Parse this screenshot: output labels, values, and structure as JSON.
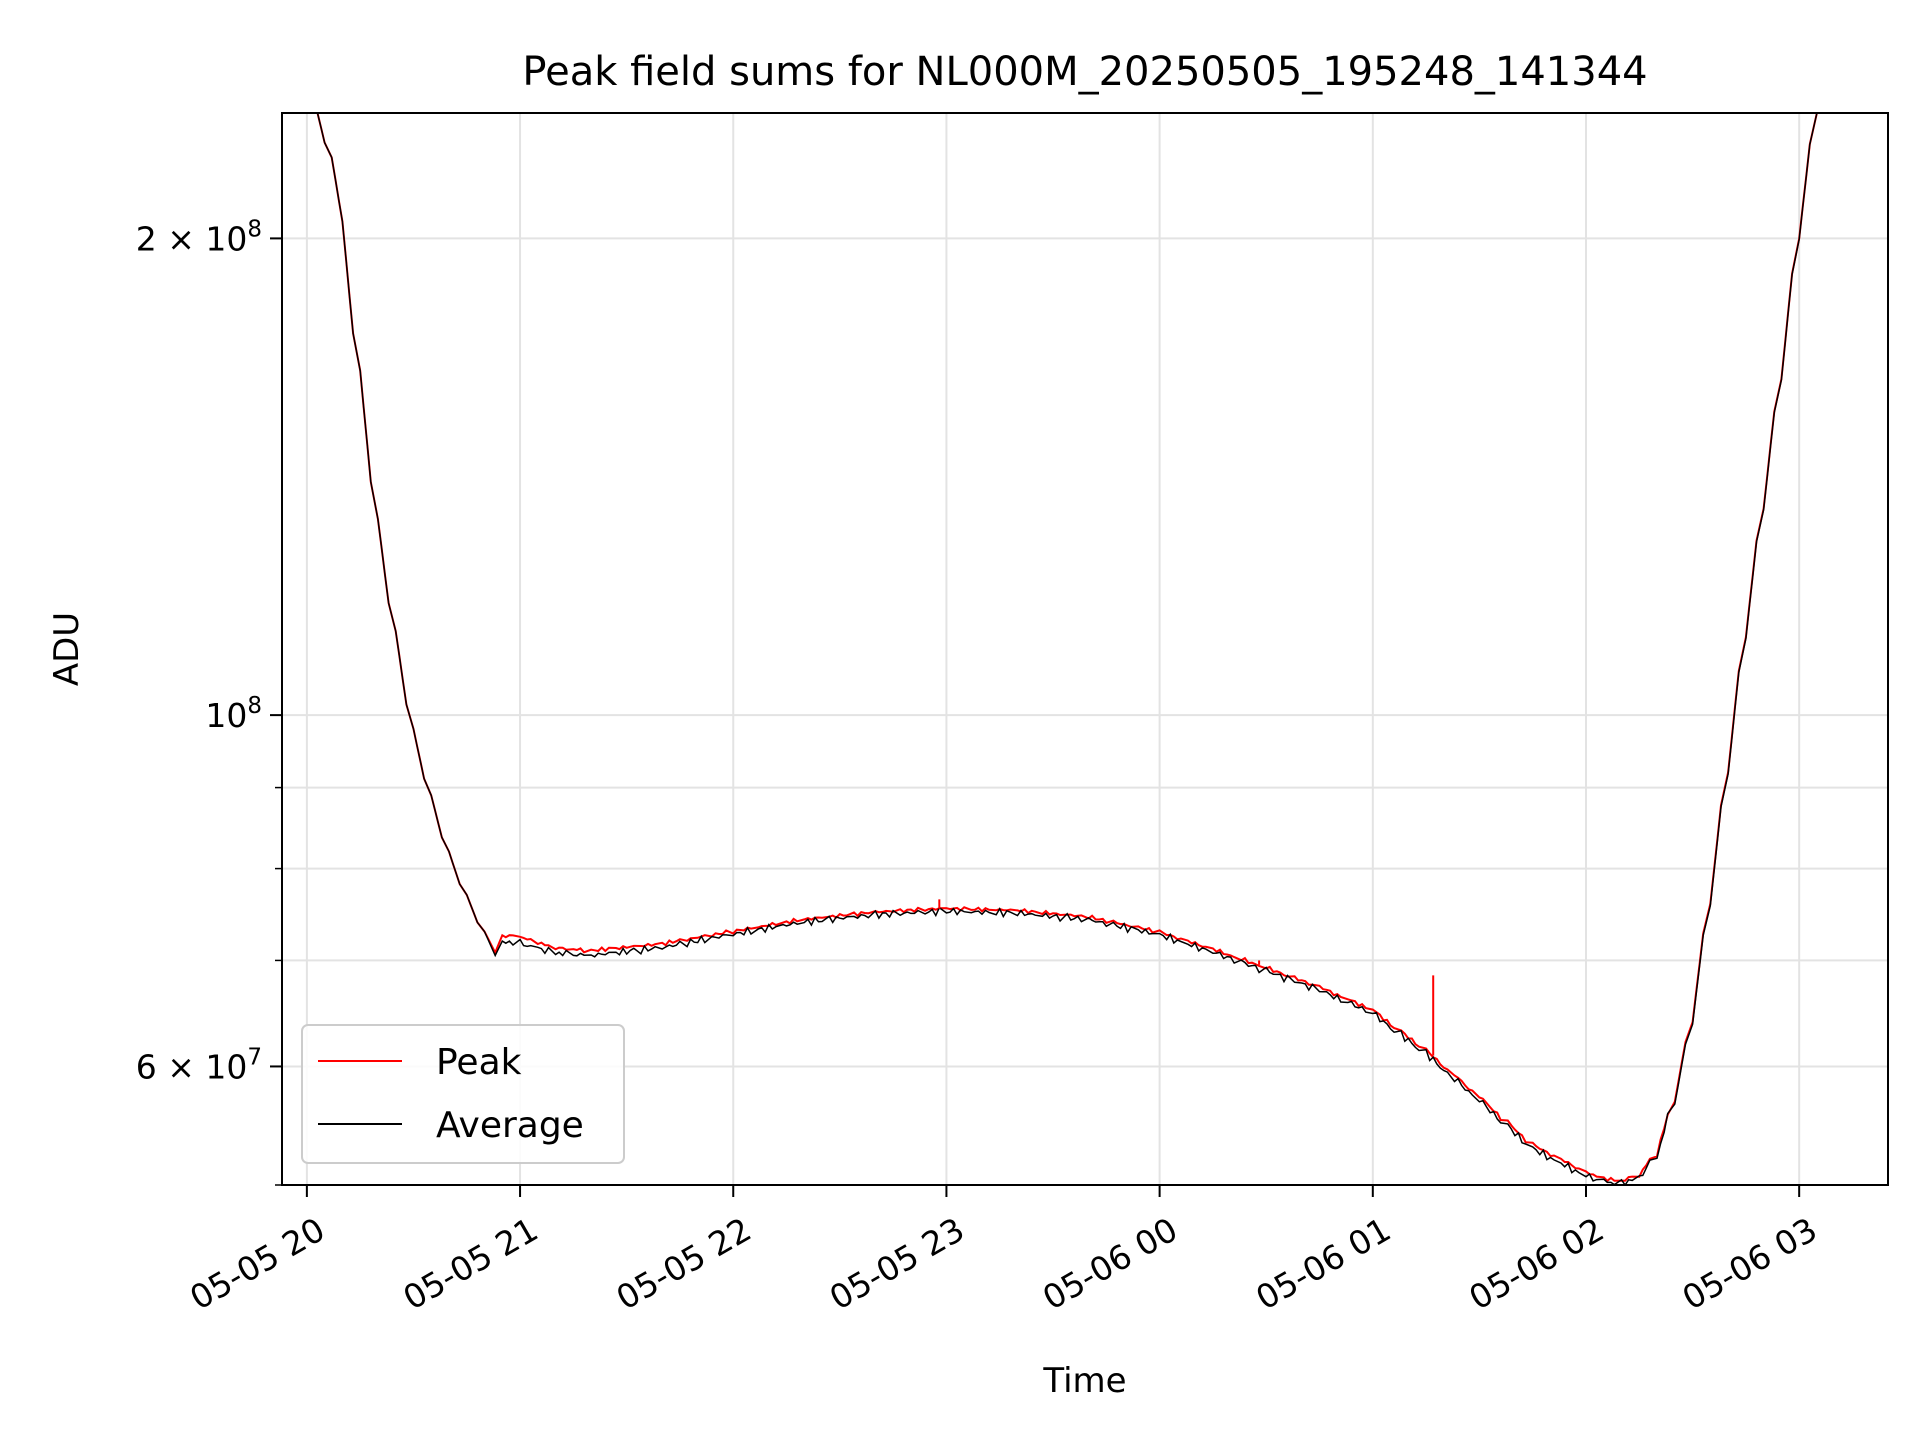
{
  "chart_data": {
    "type": "line",
    "title": "Peak field sums for NL000M_20250505_195248_141344",
    "xlabel": "Time",
    "ylabel": "ADU",
    "yscale": "log",
    "grid": true,
    "legend_position": "lower-left",
    "xlim": [
      "2025-05-05 19:53",
      "2025-05-06 03:25"
    ],
    "ylim": [
      50500000,
      240000000
    ],
    "x_ticks": [
      {
        "value": "2025-05-05 20:00",
        "label": "05-05 20"
      },
      {
        "value": "2025-05-05 21:00",
        "label": "05-05 21"
      },
      {
        "value": "2025-05-05 22:00",
        "label": "05-05 22"
      },
      {
        "value": "2025-05-05 23:00",
        "label": "05-05 23"
      },
      {
        "value": "2025-05-06 00:00",
        "label": "05-06 00"
      },
      {
        "value": "2025-05-06 01:00",
        "label": "05-06 01"
      },
      {
        "value": "2025-05-06 02:00",
        "label": "05-06 02"
      },
      {
        "value": "2025-05-06 03:00",
        "label": "05-06 03"
      }
    ],
    "y_major_ticks": [
      {
        "value": 200000000,
        "base": "2 × 10",
        "exp": "8"
      },
      {
        "value": 100000000,
        "base": "10",
        "exp": "8"
      },
      {
        "value": 60000000,
        "base": "6 × 10",
        "exp": "7"
      }
    ],
    "y_minor_ticks": [
      90000000,
      80000000,
      70000000,
      50000000
    ],
    "x": [
      "2025-05-05 19:53",
      "2025-05-05 20:00",
      "2025-05-05 20:03",
      "2025-05-05 20:07",
      "2025-05-05 20:10",
      "2025-05-05 20:15",
      "2025-05-05 20:20",
      "2025-05-05 20:25",
      "2025-05-05 20:30",
      "2025-05-05 20:35",
      "2025-05-05 20:40",
      "2025-05-05 20:45",
      "2025-05-05 20:50",
      "2025-05-05 20:53",
      "2025-05-05 20:55",
      "2025-05-05 21:00",
      "2025-05-05 21:10",
      "2025-05-05 21:20",
      "2025-05-05 21:40",
      "2025-05-05 22:00",
      "2025-05-05 22:20",
      "2025-05-05 22:40",
      "2025-05-05 23:00",
      "2025-05-05 23:20",
      "2025-05-05 23:40",
      "2025-05-06 00:00",
      "2025-05-06 00:15",
      "2025-05-06 00:30",
      "2025-05-06 00:45",
      "2025-05-06 01:00",
      "2025-05-06 01:15",
      "2025-05-06 01:30",
      "2025-05-06 01:45",
      "2025-05-06 02:00",
      "2025-05-06 02:05",
      "2025-05-06 02:10",
      "2025-05-06 02:15",
      "2025-05-06 02:20",
      "2025-05-06 02:25",
      "2025-05-06 02:30",
      "2025-05-06 02:35",
      "2025-05-06 02:40",
      "2025-05-06 02:45",
      "2025-05-06 02:50",
      "2025-05-06 02:55",
      "2025-05-06 03:00",
      "2025-05-06 03:05",
      "2025-05-06 03:10",
      "2025-05-06 03:25"
    ],
    "series": [
      {
        "name": "Peak",
        "color": "#ff0000",
        "values": [
          240000000,
          240000000,
          240000000,
          225000000,
          205000000,
          165000000,
          133000000,
          113000000,
          98000000,
          89000000,
          82000000,
          77000000,
          73000000,
          70800000,
          72600000,
          72500000,
          71300000,
          71000000,
          71700000,
          73000000,
          74300000,
          75100000,
          75500000,
          75300000,
          74600000,
          73000000,
          71200000,
          69300000,
          67400000,
          65200000,
          61500000,
          57500000,
          53600000,
          51500000,
          51000000,
          50800000,
          51200000,
          52800000,
          57000000,
          64000000,
          76000000,
          92000000,
          112000000,
          135000000,
          163000000,
          200000000,
          240000000,
          240000000,
          240000000
        ]
      },
      {
        "name": "Average",
        "color": "#000000",
        "values": [
          240000000,
          240000000,
          240000000,
          225000000,
          205000000,
          165000000,
          133000000,
          113000000,
          98000000,
          89000000,
          82000000,
          77000000,
          73000000,
          70500000,
          72000000,
          71800000,
          70800000,
          70500000,
          71300000,
          72700000,
          74000000,
          74800000,
          75200000,
          75000000,
          74300000,
          72700000,
          70900000,
          69000000,
          67100000,
          64900000,
          61200000,
          57200000,
          53300000,
          51200000,
          50800000,
          50600000,
          51000000,
          52600000,
          56800000,
          63800000,
          75800000,
          91800000,
          111800000,
          134800000,
          162800000,
          199800000,
          240000000,
          240000000,
          240000000
        ]
      }
    ],
    "spikes": [
      {
        "x": "2025-05-05 22:58",
        "value": 76500000,
        "series": "Peak"
      },
      {
        "x": "2025-05-06 00:28",
        "value": 70000000,
        "series": "Peak"
      },
      {
        "x": "2025-05-06 01:17",
        "value": 68500000,
        "series": "Peak"
      }
    ]
  }
}
